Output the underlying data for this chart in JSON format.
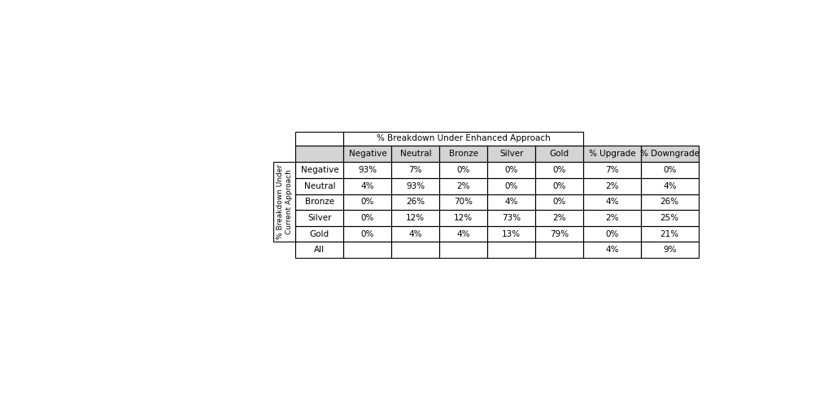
{
  "title_header": "% Breakdown Under Enhanced Approach",
  "col_headers": [
    "Negative",
    "Neutral",
    "Bronze",
    "Silver",
    "Gold",
    "% Upgrade",
    "% Downgrade"
  ],
  "row_headers": [
    "Negative",
    "Neutral",
    "Bronze",
    "Silver",
    "Gold",
    "All"
  ],
  "y_axis_label": "% Breakdown Under\nCurrent Approach",
  "table_data": [
    [
      "93%",
      "7%",
      "0%",
      "0%",
      "0%",
      "7%",
      "0%"
    ],
    [
      "4%",
      "93%",
      "2%",
      "0%",
      "0%",
      "2%",
      "4%"
    ],
    [
      "0%",
      "26%",
      "70%",
      "4%",
      "0%",
      "4%",
      "26%"
    ],
    [
      "0%",
      "12%",
      "12%",
      "73%",
      "2%",
      "2%",
      "25%"
    ],
    [
      "0%",
      "4%",
      "4%",
      "13%",
      "79%",
      "0%",
      "21%"
    ],
    [
      "",
      "",
      "",
      "",
      "",
      "4%",
      "9%"
    ]
  ],
  "header_bg": "#d4d4d4",
  "cell_bg": "#ffffff",
  "border_color": "#000000",
  "text_color": "#000000",
  "figsize": [
    10.29,
    4.93
  ],
  "dpi": 100
}
